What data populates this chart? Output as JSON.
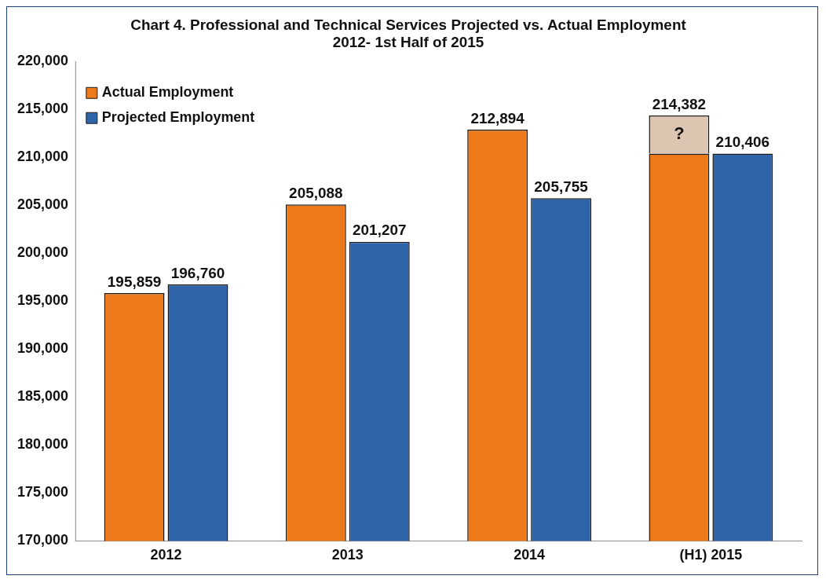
{
  "chart_data": {
    "type": "bar",
    "title": [
      "Chart 4. Professional and Technical Services Projected vs. Actual Employment",
      "2012- 1st Half of 2015"
    ],
    "categories": [
      "2012",
      "2013",
      "2014",
      "(H1) 2015"
    ],
    "series": [
      {
        "name": "Actual Employment",
        "color": "#ec7a1a",
        "values": [
          195859,
          205088,
          212894,
          210406
        ],
        "value_labels": [
          "195,859",
          "205,088",
          "212,894",
          null
        ]
      },
      {
        "color": "#dcc6b2",
        "values": [
          null,
          null,
          null,
          3976
        ],
        "base": [
          null,
          null,
          null,
          210406
        ],
        "value_labels": [
          null,
          null,
          null,
          "214,382"
        ]
      },
      {
        "name": "Projected Employment",
        "color": "#2f65a8",
        "values": [
          196760,
          201207,
          205755,
          210406
        ],
        "value_labels": [
          "196,760",
          "201,207",
          "205,755",
          "210,406"
        ]
      }
    ],
    "ylim": [
      170000,
      220000
    ],
    "yticks": [
      {
        "value": 170000,
        "label": "170,000"
      },
      {
        "value": 175000,
        "label": "175,000"
      },
      {
        "value": 180000,
        "label": "180,000"
      },
      {
        "value": 185000,
        "label": "185,000"
      },
      {
        "value": 190000,
        "label": "190,000"
      },
      {
        "value": 195000,
        "label": "195,000"
      },
      {
        "value": 200000,
        "label": "200,000"
      },
      {
        "value": 205000,
        "label": "205,000"
      },
      {
        "value": 210000,
        "label": "210,000"
      },
      {
        "value": 215000,
        "label": "215,000"
      },
      {
        "value": 220000,
        "label": "220,000"
      }
    ],
    "annotations": [
      {
        "text": "?",
        "x": "(H1) 2015",
        "y": 212394
      }
    ],
    "legend": "top left",
    "grid": false
  }
}
